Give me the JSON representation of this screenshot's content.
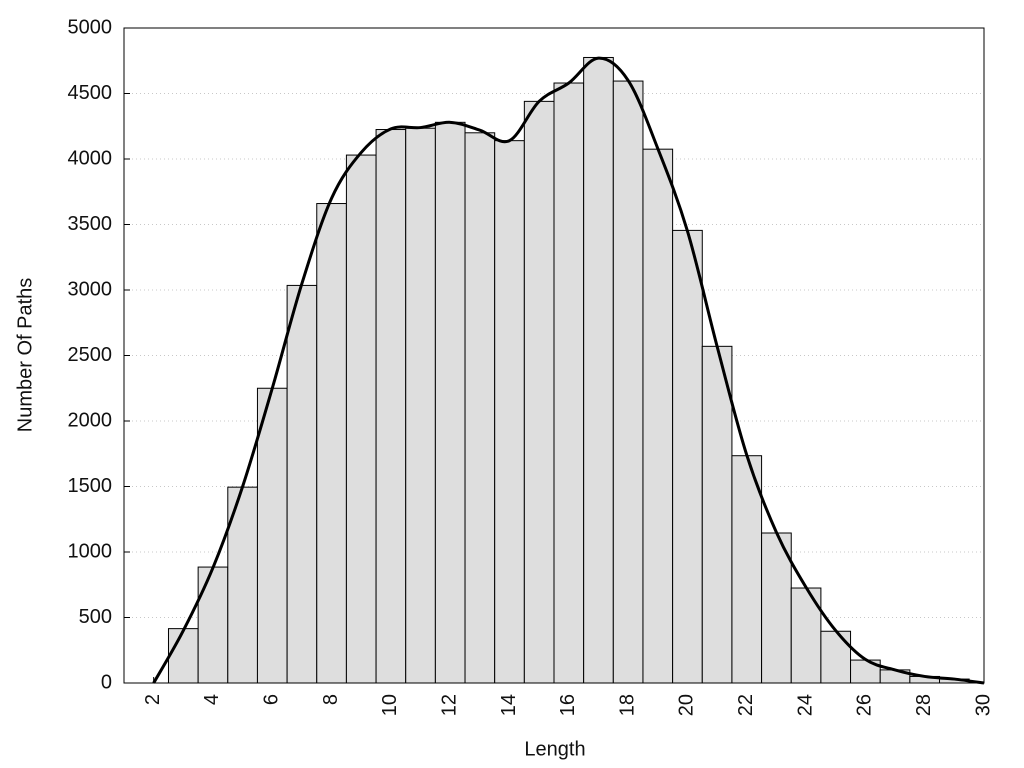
{
  "chart_data": {
    "type": "histogram",
    "x_label": "Length",
    "y_label": "Number Of Paths",
    "bins": [
      2.5,
      3.5,
      4.5,
      5.5,
      6.5,
      7.5,
      8.5,
      9.5,
      10.5,
      11.5,
      12.5,
      13.5,
      14.5,
      15.5,
      16.5,
      17.5,
      18.5,
      19.5,
      20.5,
      21.5,
      22.5,
      23.5,
      24.5,
      25.5,
      26.5,
      27.5,
      28.5,
      29.5
    ],
    "values": [
      415,
      885,
      1495,
      2250,
      3035,
      3660,
      4030,
      4225,
      4235,
      4280,
      4200,
      4140,
      4440,
      4580,
      4775,
      4595,
      4075,
      3455,
      2570,
      1735,
      1145,
      725,
      395,
      175,
      100,
      50,
      30
    ],
    "color": "#dedede",
    "curve": {
      "type": "line",
      "color": "#000000",
      "x": [
        2,
        3,
        4,
        5,
        6,
        7,
        8,
        9,
        10,
        11,
        12,
        13,
        14,
        15,
        16,
        17,
        18,
        19,
        20,
        21,
        22,
        23,
        24,
        25,
        26,
        27,
        28,
        29,
        30
      ],
      "values": [
        0,
        400,
        880,
        1500,
        2250,
        3050,
        3700,
        4050,
        4230,
        4240,
        4280,
        4220,
        4140,
        4440,
        4580,
        4770,
        4600,
        4080,
        3450,
        2570,
        1740,
        1150,
        730,
        400,
        180,
        100,
        50,
        30,
        0
      ]
    },
    "xlim": [
      1,
      30
    ],
    "ylim": [
      0,
      5000
    ],
    "xticks": [
      2,
      4,
      6,
      8,
      10,
      12,
      14,
      16,
      18,
      20,
      22,
      24,
      26,
      28,
      30
    ],
    "yticks": [
      0,
      500,
      1000,
      1500,
      2000,
      2500,
      3000,
      3500,
      4000,
      4500,
      5000
    ],
    "grid": true
  }
}
